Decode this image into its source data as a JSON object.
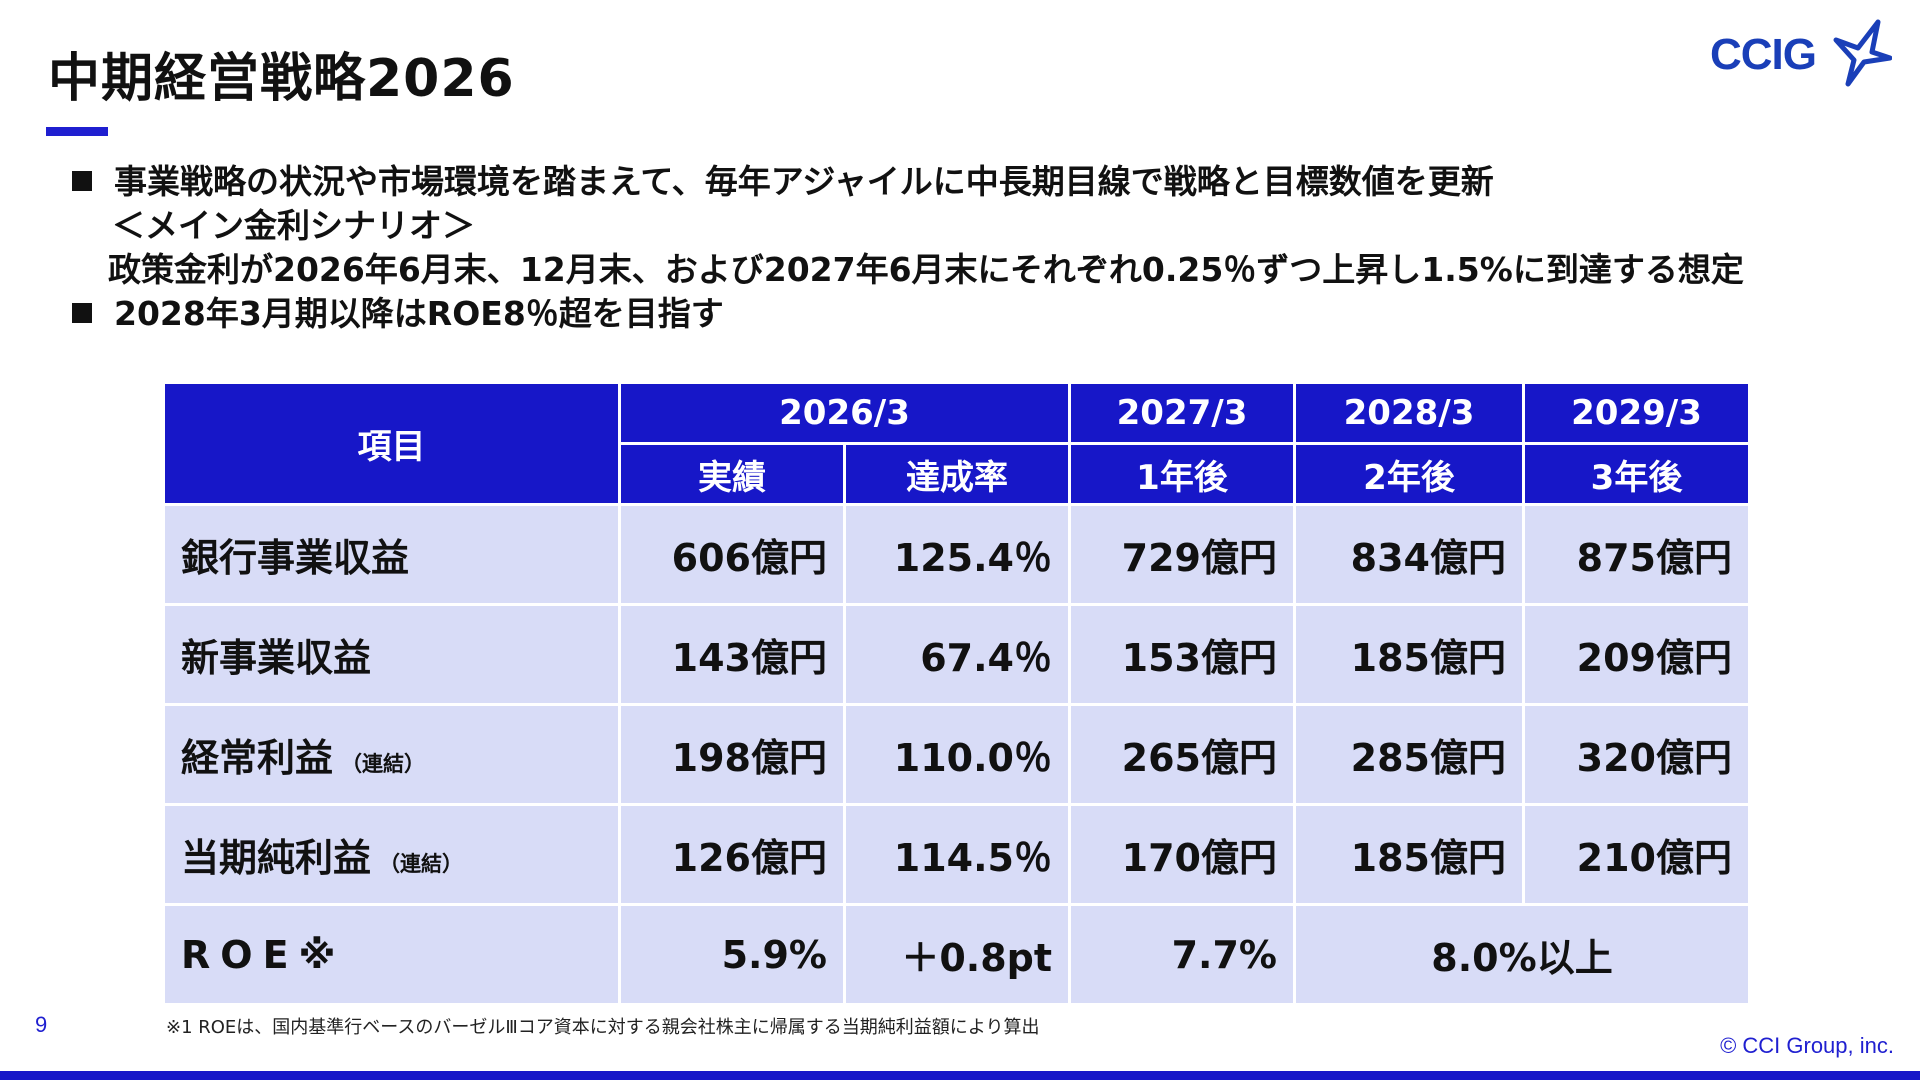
{
  "header": {
    "title": "中期経営戦略2026",
    "logo_text": "CCIG"
  },
  "bullets": {
    "line1": "事業戦略の状況や市場環境を踏まえて、毎年アジャイルに中長期目線で戦略と目標数値を更新",
    "line2": "＜メイン金利シナリオ＞",
    "line3": "政策金利が2026年6月末、12月末、および2027年6月末にそれぞれ0.25％ずつ上昇し1.5%に到達する想定",
    "line4": "2028年3月期以降はROE8％超を目指す"
  },
  "table": {
    "item_header": "項目",
    "periods": [
      "2026/3",
      "2027/3",
      "2028/3",
      "2029/3"
    ],
    "subheaders": [
      "実績",
      "達成率",
      "1年後",
      "2年後",
      "3年後"
    ],
    "rows": [
      {
        "label": "銀行事業収益",
        "note": "",
        "values": [
          "606億円",
          "125.4％",
          "729億円",
          "834億円",
          "875億円"
        ]
      },
      {
        "label": "新事業収益",
        "note": "",
        "values": [
          "143億円",
          "67.4％",
          "153億円",
          "185億円",
          "209億円"
        ]
      },
      {
        "label": "経常利益",
        "note": "（連結）",
        "values": [
          "198億円",
          "110.0％",
          "265億円",
          "285億円",
          "320億円"
        ]
      },
      {
        "label": "当期純利益",
        "note": "（連結）",
        "values": [
          "126億円",
          "114.5％",
          "170億円",
          "185億円",
          "210億円"
        ]
      }
    ],
    "roe": {
      "label": "ROE※",
      "actual": "5.9%",
      "achievement": "＋0.8pt",
      "year1": "7.7%",
      "year2_3": "8.0%以上"
    }
  },
  "footer": {
    "footnote": "※1 ROEは、国内基準行ベースのバーゼルⅢコア資本に対する親会社株主に帰属する当期純利益額により算出",
    "page_number": "9",
    "copyright": "© CCI Group, inc."
  },
  "colors": {
    "accent": "#1717c8",
    "table_body": "#d8dcf7",
    "logo": "#1a3fb8"
  }
}
